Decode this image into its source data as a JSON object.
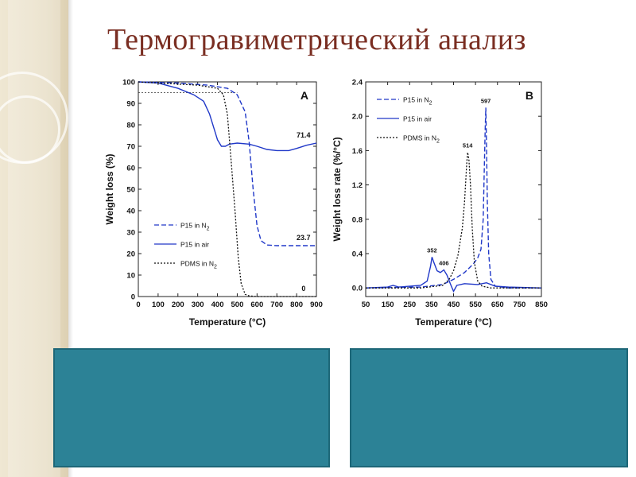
{
  "slide": {
    "title": "Термогравиметрический анализ"
  },
  "colors": {
    "background": "#ffffff",
    "title": "#7a2e22",
    "teal_box": "#2c8296",
    "series_blue": "#2038c8",
    "series_black": "#111111",
    "left_strip": "#e8dec6"
  },
  "chart_data": [
    {
      "type": "line",
      "panel_label": "A",
      "xlabel": "Temperature (°C)",
      "ylabel": "Weight loss (%)",
      "xlim": [
        0,
        900
      ],
      "ylim": [
        0,
        100
      ],
      "xticks": [
        0,
        100,
        200,
        300,
        400,
        500,
        600,
        700,
        800,
        900
      ],
      "yticks": [
        0,
        10,
        20,
        30,
        40,
        50,
        60,
        70,
        80,
        90,
        100
      ],
      "legend_position": "bottom-right",
      "annotations": [
        {
          "text": "71.4",
          "x": 835,
          "y": 71.4
        },
        {
          "text": "23.7",
          "x": 835,
          "y": 23.7
        },
        {
          "text": "0",
          "x": 835,
          "y": 0
        }
      ],
      "reference_line": {
        "y": 95,
        "x": [
          0,
          500
        ]
      },
      "series": [
        {
          "name": "P15 in N2",
          "style": "dashed",
          "color": "#2038c8",
          "points": [
            [
              0,
              100
            ],
            [
              200,
              99.5
            ],
            [
              350,
              98.5
            ],
            [
              450,
              97
            ],
            [
              500,
              94
            ],
            [
              540,
              86
            ],
            [
              560,
              72
            ],
            [
              580,
              50
            ],
            [
              600,
              33
            ],
            [
              620,
              26
            ],
            [
              650,
              24
            ],
            [
              700,
              23.7
            ],
            [
              800,
              23.7
            ],
            [
              900,
              23.7
            ]
          ]
        },
        {
          "name": "P15 in air",
          "style": "solid",
          "color": "#2038c8",
          "points": [
            [
              0,
              100
            ],
            [
              100,
              99.5
            ],
            [
              200,
              97
            ],
            [
              280,
              94
            ],
            [
              330,
              91
            ],
            [
              360,
              85
            ],
            [
              380,
              79
            ],
            [
              400,
              73
            ],
            [
              420,
              70
            ],
            [
              440,
              70
            ],
            [
              460,
              71
            ],
            [
              500,
              71.5
            ],
            [
              560,
              71
            ],
            [
              600,
              70
            ],
            [
              650,
              68.5
            ],
            [
              700,
              68
            ],
            [
              760,
              68
            ],
            [
              800,
              69
            ],
            [
              850,
              70.5
            ],
            [
              900,
              71.5
            ]
          ]
        },
        {
          "name": "PDMS in N2",
          "style": "dotted",
          "color": "#111111",
          "points": [
            [
              0,
              100
            ],
            [
              200,
              99
            ],
            [
              300,
              98.5
            ],
            [
              400,
              97
            ],
            [
              430,
              94
            ],
            [
              450,
              85
            ],
            [
              470,
              62
            ],
            [
              490,
              38
            ],
            [
              505,
              18
            ],
            [
              520,
              6
            ],
            [
              540,
              1
            ],
            [
              560,
              0.3
            ],
            [
              600,
              0
            ],
            [
              700,
              0
            ],
            [
              800,
              0
            ],
            [
              900,
              0
            ]
          ]
        }
      ]
    },
    {
      "type": "line",
      "panel_label": "B",
      "xlabel": "Temperature (°C)",
      "ylabel": "Weight loss rate (%/°C)",
      "xlim": [
        50,
        850
      ],
      "ylim": [
        -0.1,
        2.4
      ],
      "xticks": [
        50,
        150,
        250,
        350,
        450,
        550,
        650,
        750,
        850
      ],
      "yticks": [
        0.0,
        0.4,
        0.8,
        1.2,
        1.6,
        2.0,
        2.4
      ],
      "legend_position": "top-left",
      "annotations": [
        {
          "text": "352",
          "x": 352,
          "y": 0.36
        },
        {
          "text": "406",
          "x": 406,
          "y": 0.21
        },
        {
          "text": "514",
          "x": 514,
          "y": 1.58
        },
        {
          "text": "597",
          "x": 597,
          "y": 2.1
        }
      ],
      "series": [
        {
          "name": "P15 in N2",
          "style": "dashed",
          "color": "#2038c8",
          "points": [
            [
              50,
              0
            ],
            [
              300,
              0.01
            ],
            [
              400,
              0.04
            ],
            [
              450,
              0.1
            ],
            [
              500,
              0.18
            ],
            [
              540,
              0.28
            ],
            [
              560,
              0.35
            ],
            [
              575,
              0.45
            ],
            [
              585,
              0.8
            ],
            [
              590,
              1.4
            ],
            [
              594,
              1.85
            ],
            [
              597,
              2.1
            ],
            [
              600,
              1.7
            ],
            [
              604,
              1.0
            ],
            [
              610,
              0.4
            ],
            [
              620,
              0.1
            ],
            [
              640,
              0.02
            ],
            [
              700,
              0
            ],
            [
              850,
              0
            ]
          ]
        },
        {
          "name": "P15 in air",
          "style": "solid",
          "color": "#2038c8",
          "points": [
            [
              50,
              0
            ],
            [
              150,
              0.01
            ],
            [
              175,
              0.03
            ],
            [
              200,
              0.01
            ],
            [
              300,
              0.03
            ],
            [
              330,
              0.08
            ],
            [
              345,
              0.25
            ],
            [
              352,
              0.36
            ],
            [
              360,
              0.3
            ],
            [
              375,
              0.2
            ],
            [
              390,
              0.18
            ],
            [
              406,
              0.21
            ],
            [
              420,
              0.15
            ],
            [
              435,
              0.05
            ],
            [
              450,
              -0.04
            ],
            [
              465,
              0.03
            ],
            [
              500,
              0.05
            ],
            [
              560,
              0.04
            ],
            [
              600,
              0.06
            ],
            [
              640,
              0.02
            ],
            [
              700,
              0.01
            ],
            [
              850,
              0
            ]
          ]
        },
        {
          "name": "PDMS in N2",
          "style": "dotted",
          "color": "#111111",
          "points": [
            [
              50,
              0
            ],
            [
              300,
              0
            ],
            [
              400,
              0.03
            ],
            [
              430,
              0.1
            ],
            [
              450,
              0.2
            ],
            [
              470,
              0.38
            ],
            [
              490,
              0.7
            ],
            [
              500,
              1.0
            ],
            [
              510,
              1.45
            ],
            [
              514,
              1.58
            ],
            [
              520,
              1.5
            ],
            [
              527,
              1.2
            ],
            [
              535,
              0.7
            ],
            [
              545,
              0.3
            ],
            [
              560,
              0.08
            ],
            [
              580,
              0.02
            ],
            [
              620,
              0
            ],
            [
              850,
              0
            ]
          ]
        }
      ]
    }
  ]
}
